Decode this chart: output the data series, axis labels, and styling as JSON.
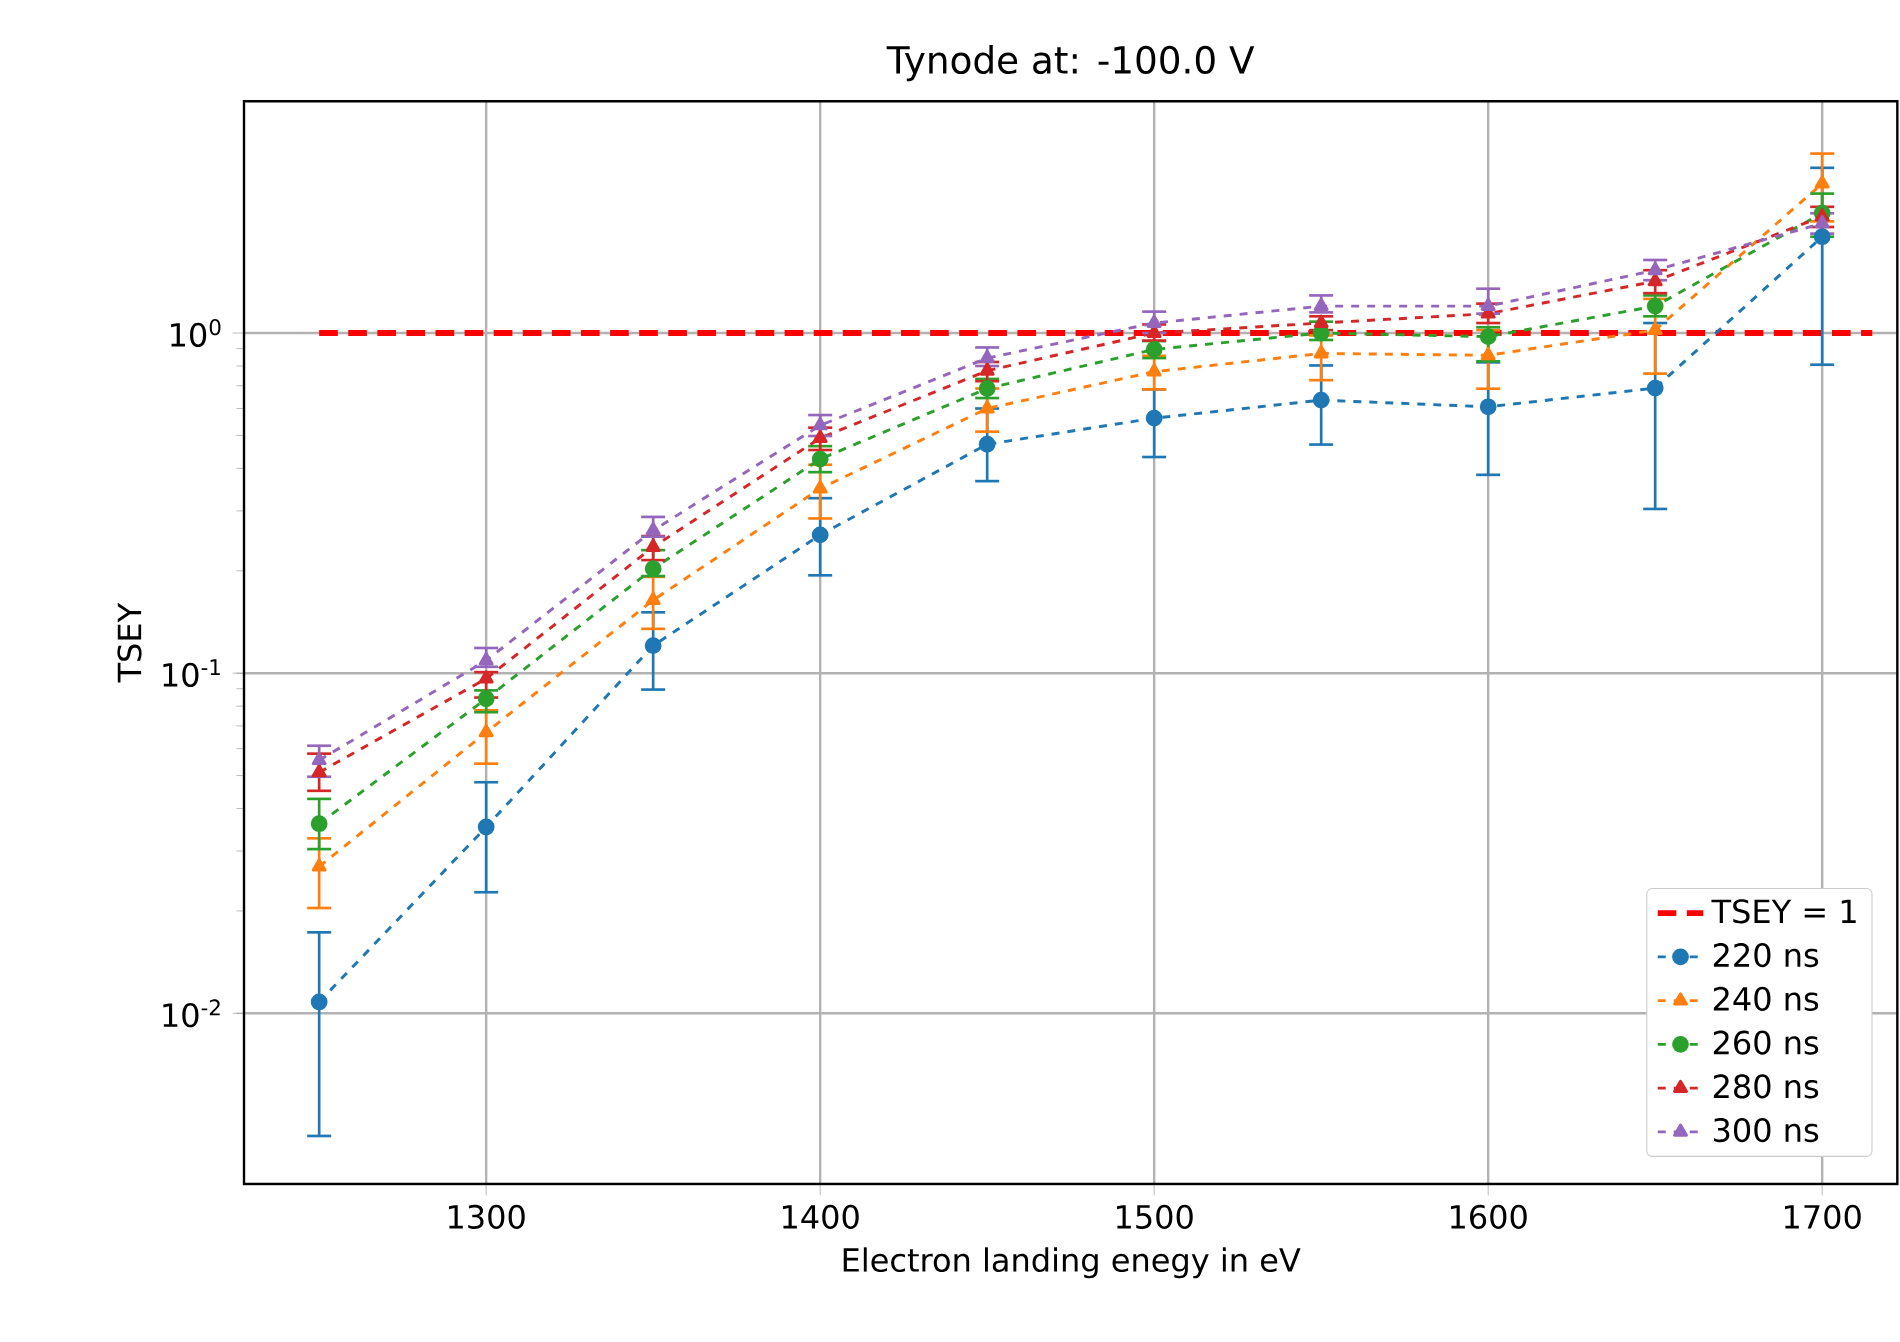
{
  "chart_data": {
    "type": "line",
    "title": "Tynode at: -100.0 V",
    "xlabel": "Electron landing enegy in eV",
    "ylabel": "TSEY",
    "x": [
      1250,
      1300,
      1350,
      1400,
      1450,
      1500,
      1550,
      1600,
      1650,
      1700
    ],
    "series": [
      {
        "name": "TSEY = 1",
        "color": "#ff0000",
        "x": [
          1250,
          1715
        ],
        "values": [
          1,
          1
        ],
        "marker": "none"
      },
      {
        "name": "220 ns",
        "color": "#1f77b4",
        "marker": "circle",
        "values": [
          0.0108,
          0.0353,
          0.1205,
          0.255,
          0.471,
          0.562,
          0.635,
          0.607,
          0.689,
          1.92
        ],
        "errors": [
          [
            0.00436,
            0.0173
          ],
          [
            0.0227,
            0.0478
          ],
          [
            0.0895,
            0.151
          ],
          [
            0.194,
            0.327
          ],
          [
            0.367,
            0.6
          ],
          [
            0.432,
            0.683
          ],
          [
            0.47,
            0.803
          ],
          [
            0.383,
            0.82
          ],
          [
            0.304,
            1.07
          ],
          [
            0.807,
            3.06
          ]
        ]
      },
      {
        "name": "240 ns",
        "color": "#ff7f0e",
        "marker": "triangle",
        "values": [
          0.027,
          0.067,
          0.164,
          0.349,
          0.6,
          0.77,
          0.871,
          0.86,
          1.02,
          2.75
        ],
        "errors": [
          [
            0.0204,
            0.0327
          ],
          [
            0.0542,
            0.0778
          ],
          [
            0.135,
            0.192
          ],
          [
            0.285,
            0.41
          ],
          [
            0.513,
            0.687
          ],
          [
            0.683,
            0.857
          ],
          [
            0.727,
            0.984
          ],
          [
            0.686,
            1.02
          ],
          [
            0.76,
            1.26
          ],
          [
            2.13,
            3.37
          ]
        ]
      },
      {
        "name": "260 ns",
        "color": "#2ca02c",
        "marker": "circle",
        "values": [
          0.0361,
          0.0841,
          0.203,
          0.426,
          0.687,
          0.895,
          1.0,
          0.976,
          1.2,
          2.25
        ],
        "errors": [
          [
            0.0304,
            0.0427
          ],
          [
            0.0768,
            0.089
          ],
          [
            0.193,
            0.23
          ],
          [
            0.39,
            0.465
          ],
          [
            0.644,
            0.733
          ],
          [
            0.844,
            0.947
          ],
          [
            0.954,
            1.08
          ],
          [
            0.826,
            1.04
          ],
          [
            1.12,
            1.29
          ],
          [
            1.92,
            2.57
          ]
        ]
      },
      {
        "name": "280 ns",
        "color": "#d62728",
        "marker": "triangle",
        "values": [
          0.0511,
          0.0964,
          0.235,
          0.491,
          0.775,
          1.0,
          1.07,
          1.14,
          1.42,
          2.2
        ],
        "errors": [
          [
            0.0451,
            0.058
          ],
          [
            0.0848,
            0.1007
          ],
          [
            0.215,
            0.253
          ],
          [
            0.453,
            0.527
          ],
          [
            0.722,
            0.822
          ],
          [
            0.95,
            1.06
          ],
          [
            1.02,
            1.12
          ],
          [
            1.07,
            1.22
          ],
          [
            1.31,
            1.53
          ],
          [
            2.05,
            2.35
          ]
        ]
      },
      {
        "name": "300 ns",
        "color": "#9467bd",
        "marker": "triangle",
        "values": [
          0.0555,
          0.109,
          0.263,
          0.535,
          0.844,
          1.07,
          1.2,
          1.2,
          1.53,
          2.1
        ],
        "errors": [
          [
            0.0496,
            0.0612
          ],
          [
            0.1044,
            0.1186
          ],
          [
            0.252,
            0.288
          ],
          [
            0.498,
            0.574
          ],
          [
            0.8,
            0.907
          ],
          [
            1.0,
            1.156
          ],
          [
            1.15,
            1.29
          ],
          [
            1.14,
            1.35
          ],
          [
            1.43,
            1.64
          ],
          [
            1.96,
            2.25
          ]
        ]
      }
    ],
    "xlim": [
      1227.5,
      1722.5
    ],
    "ylim": [
      0.00315,
      4.8
    ],
    "xticks": [
      1300,
      1400,
      1500,
      1600,
      1700
    ],
    "yticks": [
      {
        "value": 0.01,
        "label": "10$^{-2}$"
      },
      {
        "value": 0.1,
        "label": "10$^{-1}$"
      },
      {
        "value": 1,
        "label": "10$^{0}$"
      }
    ],
    "log": "y",
    "grid": true,
    "legend": "bottom right",
    "line_style": "dashed"
  }
}
